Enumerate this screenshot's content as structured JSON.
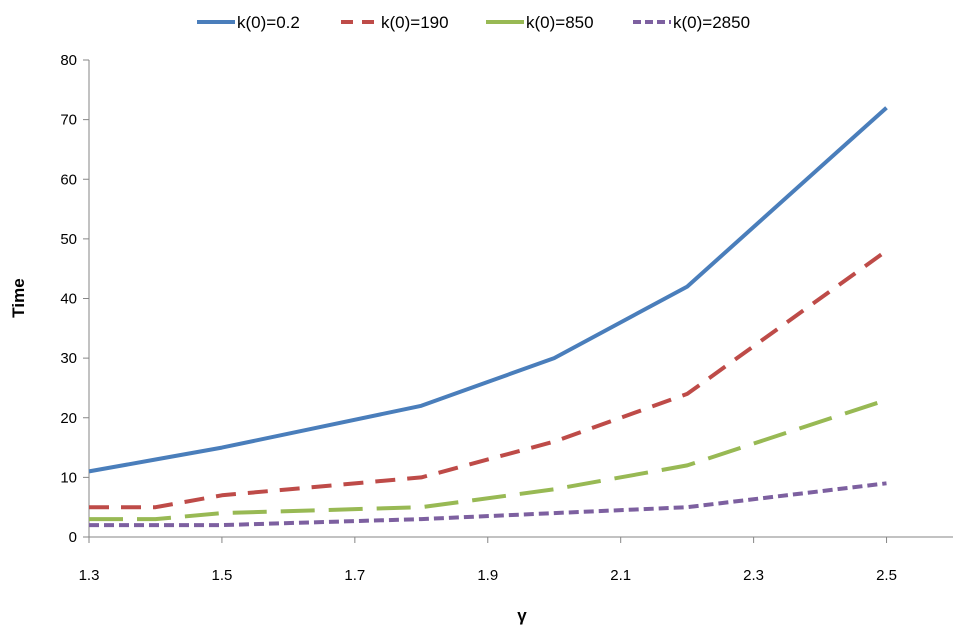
{
  "chart_data": {
    "type": "line",
    "title": "",
    "xlabel": "γ",
    "ylabel": "Time",
    "xlim": [
      1.3,
      2.6
    ],
    "ylim": [
      0,
      80
    ],
    "x_ticks": [
      "1.3",
      "1.5",
      "1.7",
      "1.9",
      "2.1",
      "2.3",
      "2.5"
    ],
    "y_ticks": [
      "0",
      "10",
      "20",
      "30",
      "40",
      "50",
      "60",
      "70",
      "80"
    ],
    "grid": false,
    "legend_position": "top",
    "x": [
      1.3,
      1.4,
      1.5,
      1.8,
      2.0,
      2.2,
      2.5
    ],
    "series": [
      {
        "name": "k(0)=0.2",
        "color": "#4a7ebb",
        "style": "solid",
        "values": [
          11,
          13,
          15,
          22,
          30,
          42,
          72
        ]
      },
      {
        "name": "k(0)=190",
        "color": "#be4b48",
        "style": "dashed",
        "values": [
          5,
          5,
          7,
          10,
          16,
          24,
          48
        ]
      },
      {
        "name": "k(0)=850",
        "color": "#98b954",
        "style": "longdash",
        "values": [
          3,
          3,
          4,
          5,
          8,
          12,
          23
        ]
      },
      {
        "name": "k(0)=2850",
        "color": "#7d60a0",
        "style": "dotted",
        "values": [
          2,
          2,
          2,
          3,
          4,
          5,
          9
        ]
      }
    ]
  }
}
